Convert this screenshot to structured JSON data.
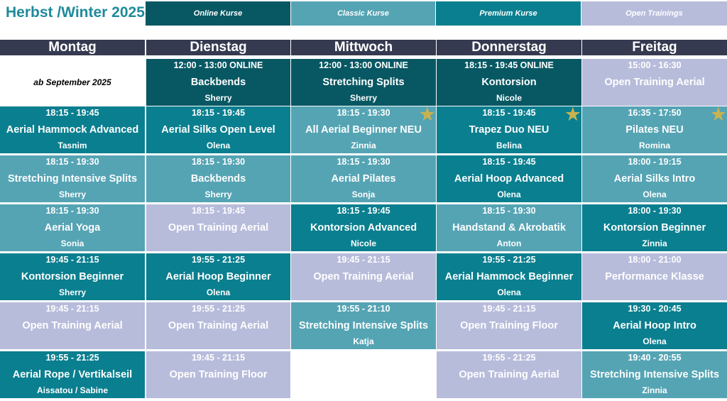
{
  "title": "Herbst /Winter 2025",
  "colors": {
    "online": "#085863",
    "classic": "#55a4b4",
    "premium": "#0a7f8f",
    "open": "#b8bcdb",
    "header": "#363a50",
    "star": "#c9b24f"
  },
  "legend": [
    {
      "label": "Online Kurse",
      "type": "online"
    },
    {
      "label": "Classic Kurse",
      "type": "classic"
    },
    {
      "label": "Premium Kurse",
      "type": "premium"
    },
    {
      "label": "Open Trainings",
      "type": "open"
    }
  ],
  "days": [
    "Montag",
    "Dienstag",
    "Mittwoch",
    "Donnerstag",
    "Freitag"
  ],
  "schedule": [
    [
      {
        "note": "ab September 2025"
      },
      {
        "time": "18:15 - 19:45",
        "name": "Aerial Hammock Advanced",
        "person": "Tasnim",
        "type": "premium"
      },
      {
        "time": "18:15 - 19:30",
        "name": "Stretching Intensive Splits",
        "person": "Sherry",
        "type": "classic"
      },
      {
        "time": "18:15 - 19:30",
        "name": "Aerial Yoga",
        "person": "Sonia",
        "type": "classic"
      },
      {
        "time": "19:45 - 21:15",
        "name": "Kontorsion Beginner",
        "person": "Sherry",
        "type": "premium"
      },
      {
        "time": "19:45 - 21:15",
        "name": "Open Training Aerial",
        "person": "",
        "type": "open"
      },
      {
        "time": "19:55 - 21:25",
        "name": "Aerial Rope / Vertikalseil",
        "person": "Aissatou / Sabine",
        "type": "premium"
      }
    ],
    [
      {
        "time": "12:00 - 13:00 ONLINE",
        "name": "Backbends",
        "person": "Sherry",
        "type": "online"
      },
      {
        "time": "18:15 - 19:45",
        "name": "Aerial Silks Open Level",
        "person": "Olena",
        "type": "premium"
      },
      {
        "time": "18:15 - 19:30",
        "name": "Backbends",
        "person": "Sherry",
        "type": "classic"
      },
      {
        "time": "18:15 - 19:45",
        "name": "Open Training Aerial",
        "person": "",
        "type": "open"
      },
      {
        "time": "19:55 - 21:25",
        "name": "Aerial Hoop Beginner",
        "person": "Olena",
        "type": "premium"
      },
      {
        "time": "19:55 - 21:25",
        "name": "Open Training Aerial",
        "person": "",
        "type": "open"
      },
      {
        "time": "19:45 - 21:15",
        "name": "Open Training Floor",
        "person": "",
        "type": "open"
      }
    ],
    [
      {
        "time": "12:00 - 13:00 ONLINE",
        "name": "Stretching Splits",
        "person": "Sherry",
        "type": "online"
      },
      {
        "time": "18:15 - 19:30",
        "name": "All Aerial Beginner NEU",
        "person": "Zinnia",
        "type": "classic",
        "star": true
      },
      {
        "time": "18:15 - 19:30",
        "name": "Aerial Pilates",
        "person": "Sonja",
        "type": "classic"
      },
      {
        "time": "18:15 - 19:45",
        "name": "Kontorsion Advanced",
        "person": "Nicole",
        "type": "premium"
      },
      {
        "time": "19:45 - 21:15",
        "name": "Open Training Aerial",
        "person": "",
        "type": "open"
      },
      {
        "time": "19:55 - 21:10",
        "name": "Stretching Intensive Splits",
        "person": "Katja",
        "type": "classic"
      },
      {
        "empty": true
      }
    ],
    [
      {
        "time": "18:15 - 19:45 ONLINE",
        "name": "Kontorsion",
        "person": "Nicole",
        "type": "online"
      },
      {
        "time": "18:15 - 19:45",
        "name": "Trapez Duo NEU",
        "person": "Belina",
        "type": "premium",
        "star": true
      },
      {
        "time": "18:15 - 19:45",
        "name": "Aerial Hoop Advanced",
        "person": "Olena",
        "type": "premium"
      },
      {
        "time": "18:15 - 19:30",
        "name": "Handstand & Akrobatik",
        "person": "Anton",
        "type": "classic"
      },
      {
        "time": "19:55 - 21:25",
        "name": "Aerial Hammock Beginner",
        "person": "Olena",
        "type": "premium"
      },
      {
        "time": "19:45 - 21:15",
        "name": "Open Training Floor",
        "person": "",
        "type": "open"
      },
      {
        "time": "19:55 - 21:25",
        "name": "Open Training Aerial",
        "person": "",
        "type": "open"
      }
    ],
    [
      {
        "time": "15:00 - 16:30",
        "name": "Open Training Aerial",
        "person": "",
        "type": "open"
      },
      {
        "time": "16:35 - 17:50",
        "name": "Pilates NEU",
        "person": "Romina",
        "type": "classic",
        "star": true
      },
      {
        "time": "18:00 - 19:15",
        "name": "Aerial Silks Intro",
        "person": "Olena",
        "type": "classic"
      },
      {
        "time": "18:00 - 19:30",
        "name": "Kontorsion Beginner",
        "person": "Zinnia",
        "type": "premium"
      },
      {
        "time": "18:00 - 21:00",
        "name": "Performance Klasse",
        "person": "",
        "type": "open"
      },
      {
        "time": "19:30 - 20:45",
        "name": "Aerial Hoop Intro",
        "person": "Olena",
        "type": "premium"
      },
      {
        "time": "19:40 - 20:55",
        "name": "Stretching Intensive Splits",
        "person": "Zinnia",
        "type": "classic"
      }
    ]
  ]
}
